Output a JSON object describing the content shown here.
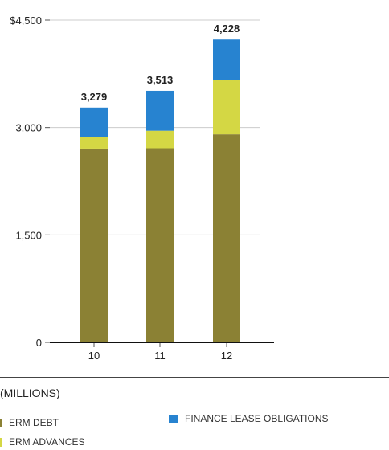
{
  "chart_data": {
    "type": "bar",
    "stacked": true,
    "categories": [
      "10",
      "11",
      "12"
    ],
    "series": [
      {
        "name": "ERM DEBT",
        "color": "#8b8134",
        "values": [
          2705,
          2710,
          2905
        ]
      },
      {
        "name": "ERM ADVANCES",
        "color": "#d4d744",
        "values": [
          165,
          245,
          760
        ]
      },
      {
        "name": "FINANCE LEASE OBLIGATIONS",
        "color": "#2783d0",
        "values": [
          409,
          558,
          563
        ]
      }
    ],
    "totals": [
      "3,279",
      "3,513",
      "4,228"
    ],
    "yticks": [
      0,
      1500,
      3000,
      4500
    ],
    "ytick_labels": [
      "0",
      "1,500",
      "3,000",
      "$4,500"
    ],
    "ylim": [
      0,
      4500
    ],
    "grid": true,
    "units_label": "(MILLIONS)",
    "legend_position": "bottom"
  }
}
